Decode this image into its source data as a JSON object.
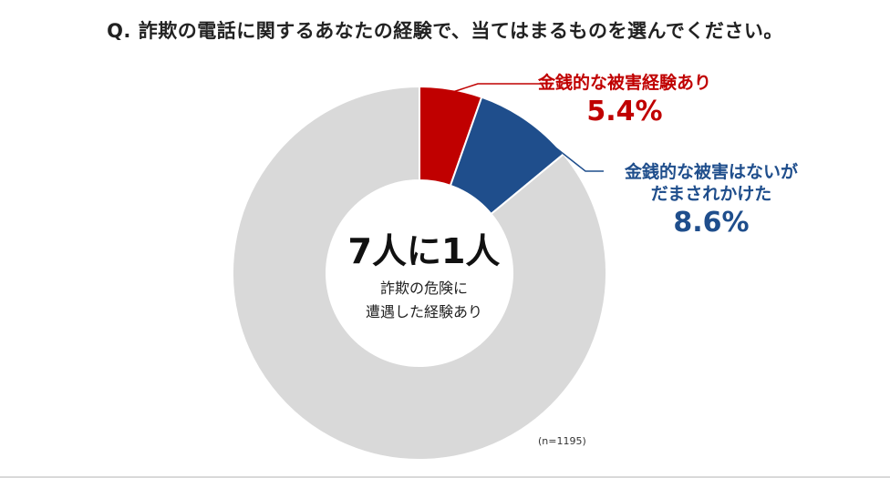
{
  "question": "Q. 詐欺の電話に関するあなたの経験で、当てはまるものを選んでください。",
  "chart_data": {
    "type": "pie",
    "donut": true,
    "start": "top",
    "direction": "clockwise",
    "slices": [
      {
        "label_lines": [
          "金銭的な被害経験あり"
        ],
        "value": 5.4,
        "value_label": "5.4%",
        "color": "#c00000",
        "label_color": "#c00000",
        "label_position": "top-right"
      },
      {
        "label_lines": [
          "金銭的な被害はないが",
          "だまされかけた"
        ],
        "value": 8.6,
        "value_label": "8.6%",
        "color": "#1f4e8c",
        "label_color": "#1f4e8c",
        "label_position": "right"
      },
      {
        "label_lines": [],
        "value": 86.0,
        "value_label": "",
        "color": "#d9d9d9",
        "label_color": "",
        "label_position": "none"
      }
    ]
  },
  "center": {
    "headline": "7人に1人",
    "sub_lines": [
      "詐欺の危険に",
      "遭遇した経験あり"
    ]
  },
  "sample_note": "(n=1195)"
}
